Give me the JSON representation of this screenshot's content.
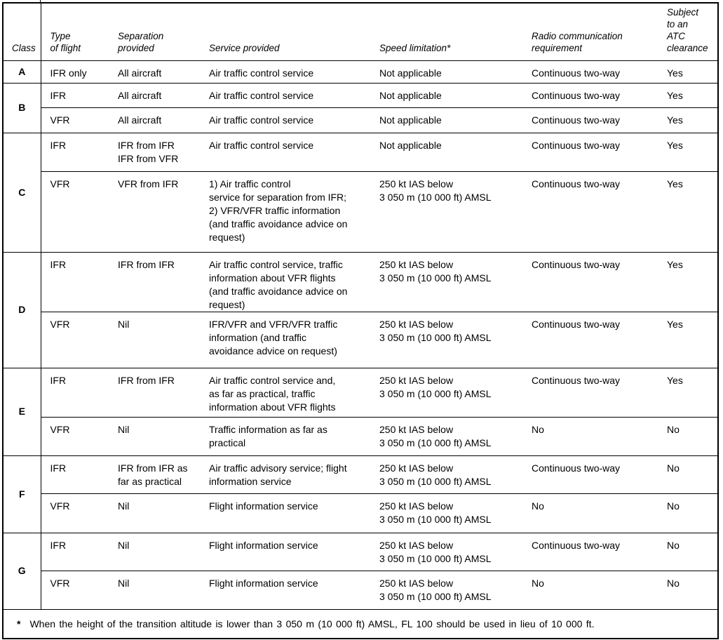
{
  "table": {
    "headers": {
      "class": "Class",
      "type_of_flight": "Type\nof flight",
      "separation_provided": "Separation\nprovided",
      "service_provided": "Service provided",
      "speed_limitation": "Speed limitation*",
      "radio_communication": "Radio communication\nrequirement",
      "atc_clearance": "Subject\nto an\nATC\nclearance"
    },
    "classes": [
      {
        "class": "A",
        "rows": [
          {
            "type": "IFR only",
            "separation": "All aircraft",
            "service": "Air traffic control service",
            "speed": "Not applicable",
            "radio": "Continuous two-way",
            "atc": "Yes"
          }
        ]
      },
      {
        "class": "B",
        "rows": [
          {
            "type": "IFR",
            "separation": "All aircraft",
            "service": "Air traffic control service",
            "speed": "Not applicable",
            "radio": "Continuous two-way",
            "atc": "Yes"
          },
          {
            "type": "VFR",
            "separation": "All aircraft",
            "service": "Air traffic control service",
            "speed": "Not applicable",
            "radio": "Continuous two-way",
            "atc": "Yes"
          }
        ]
      },
      {
        "class": "C",
        "rows": [
          {
            "type": "IFR",
            "separation": "IFR from IFR\nIFR from VFR",
            "service": "Air traffic control service",
            "speed": "Not applicable",
            "radio": "Continuous two-way",
            "atc": "Yes"
          },
          {
            "type": "VFR",
            "separation": "VFR from IFR",
            "service": "1) Air traffic control\nservice for separation from IFR;\n2) VFR/VFR traffic information\n(and traffic avoidance advice on\nrequest)",
            "speed": "250 kt IAS below\n3 050 m (10 000 ft) AMSL",
            "radio": "Continuous two-way",
            "atc": "Yes"
          }
        ]
      },
      {
        "class": "D",
        "rows": [
          {
            "type": "IFR",
            "separation": "IFR from IFR",
            "service": "Air traffic control service, traffic\ninformation about VFR flights\n(and traffic avoidance advice on\nrequest)",
            "speed": "250 kt IAS below\n3 050 m (10 000 ft) AMSL",
            "radio": "Continuous two-way",
            "atc": "Yes"
          },
          {
            "type": "VFR",
            "separation": "Nil",
            "service": "IFR/VFR and VFR/VFR traffic\ninformation (and traffic\navoidance advice on request)",
            "speed": "250 kt IAS below\n3 050 m (10 000 ft) AMSL",
            "radio": "Continuous two-way",
            "atc": "Yes"
          }
        ]
      },
      {
        "class": "E",
        "rows": [
          {
            "type": "IFR",
            "separation": "IFR from IFR",
            "service": "Air traffic control service and,\nas far as practical, traffic\ninformation about VFR flights",
            "speed": "250 kt IAS below\n3 050 m (10 000 ft) AMSL",
            "radio": "Continuous two-way",
            "atc": "Yes"
          },
          {
            "type": "VFR",
            "separation": "Nil",
            "service": "Traffic information as far as\npractical",
            "speed": "250 kt IAS below\n3 050 m (10 000 ft) AMSL",
            "radio": "No",
            "atc": "No"
          }
        ]
      },
      {
        "class": "F",
        "rows": [
          {
            "type": "IFR",
            "separation": "IFR from IFR as\nfar as practical",
            "service": "Air traffic advisory service; flight\ninformation service",
            "speed": "250 kt IAS below\n3 050 m (10 000 ft) AMSL",
            "radio": "Continuous two-way",
            "atc": "No"
          },
          {
            "type": "VFR",
            "separation": "Nil",
            "service": "Flight information service",
            "speed": "250 kt IAS below\n3 050 m (10 000 ft) AMSL",
            "radio": "No",
            "atc": "No"
          }
        ]
      },
      {
        "class": "G",
        "rows": [
          {
            "type": "IFR",
            "separation": "Nil",
            "service": "Flight information service",
            "speed": "250 kt IAS below\n3 050 m (10 000 ft) AMSL",
            "radio": "Continuous two-way",
            "atc": "No"
          },
          {
            "type": "VFR",
            "separation": "Nil",
            "service": "Flight information service",
            "speed": "250 kt IAS below\n3 050 m (10 000 ft) AMSL",
            "radio": "No",
            "atc": "No"
          }
        ]
      }
    ],
    "footnote": {
      "marker": "*",
      "text": "When the height of the transition altitude is lower than 3 050 m (10 000 ft) AMSL, FL 100 should be used in lieu of 10 000 ft."
    }
  }
}
